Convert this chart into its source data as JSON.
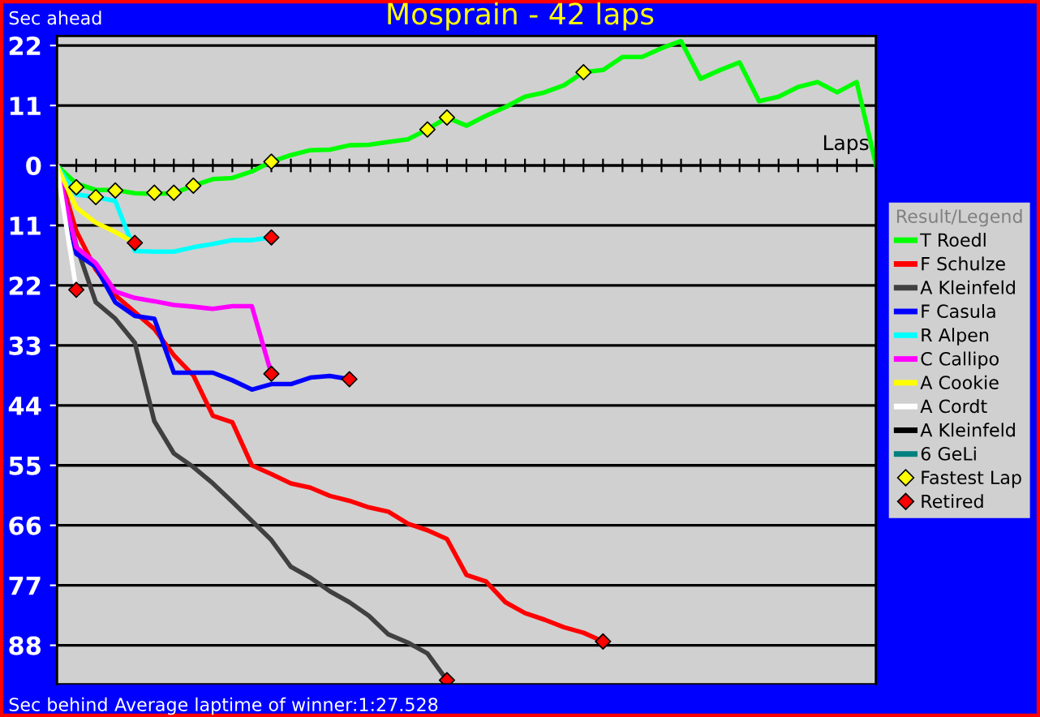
{
  "chart_data": {
    "type": "line",
    "title": "Mosprain - 42 laps",
    "xlabel": "Laps",
    "legend_title": "Result/Legend",
    "annotations": [
      "Sec ahead",
      "Sec behind",
      "Average laptime of winner:1:27.528"
    ],
    "categories": [
      null,
      null,
      null,
      null,
      null,
      null,
      null,
      null,
      null,
      null,
      null,
      null,
      null,
      null,
      null,
      null,
      null,
      null,
      null,
      null,
      null,
      null,
      null,
      null,
      null,
      null,
      null,
      null,
      null,
      null,
      null,
      null,
      null,
      null,
      null,
      null,
      null,
      null,
      null,
      null,
      null,
      null,
      null
    ],
    "ylim": [
      -95.2,
      23.8
    ],
    "yticks": [
      22,
      11,
      0,
      {
        "value": -11,
        "label": "11"
      },
      {
        "value": -22,
        "label": "22"
      },
      {
        "value": -33,
        "label": "33"
      },
      {
        "value": -44,
        "label": "44"
      },
      {
        "value": -55,
        "label": "55"
      },
      {
        "value": -66,
        "label": "66"
      },
      {
        "value": -77,
        "label": "77"
      },
      {
        "value": -88,
        "label": "88"
      }
    ],
    "grid": "y",
    "legend": "right",
    "line_style": "solid",
    "series": [
      {
        "name": "T Roedl",
        "color": "#00ff00",
        "values": [
          0,
          -3.3,
          -4.5,
          -4.5,
          -5.1,
          -5.2,
          -5.1,
          -3.7,
          -2.5,
          -2.3,
          -1.1,
          0.7,
          1.9,
          2.8,
          2.9,
          3.7,
          3.8,
          4.3,
          4.8,
          6.6,
          8.8,
          7.3,
          9.1,
          10.7,
          12.6,
          13.4,
          14.7,
          17.1,
          17.5,
          19.9,
          19.9,
          21.5,
          22.8,
          15.9,
          17.5,
          18.9,
          11.8,
          12.6,
          14.4,
          15.3,
          13.4,
          15.3,
          0
        ]
      },
      {
        "name": "F Schulze",
        "color": "#ff0000",
        "values": [
          0,
          -12,
          -19.1,
          -23.8,
          -26.9,
          -30.0,
          -34.8,
          -38.5,
          -45.9,
          -47.1,
          -55.0,
          -56.6,
          -58.3,
          -59.1,
          -60.6,
          -61.5,
          -62.7,
          -63.5,
          -65.7,
          -66.9,
          -68.5,
          -75.1,
          -76.3,
          -80.1,
          -82.1,
          -83.3,
          -84.7,
          -85.7,
          -87.3,
          null,
          null,
          null,
          null,
          null,
          null,
          null,
          null,
          null,
          null,
          null,
          null,
          null,
          null
        ]
      },
      {
        "name": "A Kleinfeld",
        "color": "#404040",
        "values": [
          0,
          -14.7,
          -25.1,
          -28.1,
          -32.5,
          -46.9,
          -52.8,
          -55.3,
          -58.3,
          -61.7,
          -65.2,
          -68.7,
          -73.6,
          -75.6,
          -78.1,
          -80.1,
          -82.6,
          -86.0,
          -87.5,
          -89.5,
          -94.4,
          null,
          null,
          null,
          null,
          null,
          null,
          null,
          null,
          null,
          null,
          null,
          null,
          null,
          null,
          null,
          null,
          null,
          null,
          null,
          null,
          null,
          null
        ]
      },
      {
        "name": "F Casula",
        "color": "#0000ff",
        "values": [
          0,
          -16.2,
          -18.6,
          -25.1,
          -27.6,
          -28.1,
          -38.0,
          -38.0,
          -38.0,
          -39.4,
          -41.1,
          -40.1,
          -40.1,
          -38.9,
          -38.6,
          -39.2,
          null,
          null,
          null,
          null,
          null,
          null,
          null,
          null,
          null,
          null,
          null,
          null,
          null,
          null,
          null,
          null,
          null,
          null,
          null,
          null,
          null,
          null,
          null,
          null,
          null,
          null,
          null
        ]
      },
      {
        "name": "R Alpen",
        "color": "#00ffff",
        "values": [
          0,
          -5.3,
          -5.8,
          -6.5,
          -15.7,
          -15.8,
          -15.8,
          -15.0,
          -14.4,
          -13.7,
          -13.7,
          -13.2,
          null,
          null,
          null,
          null,
          null,
          null,
          null,
          null,
          null,
          null,
          null,
          null,
          null,
          null,
          null,
          null,
          null,
          null,
          null,
          null,
          null,
          null,
          null,
          null,
          null,
          null,
          null,
          null,
          null,
          null,
          null
        ]
      },
      {
        "name": "C Callipo",
        "color": "#ff00ff",
        "values": [
          0,
          -15,
          -17.9,
          -23.1,
          -24.3,
          -24.9,
          -25.6,
          -25.9,
          -26.3,
          -25.8,
          -25.8,
          -38.2,
          null,
          null,
          null,
          null,
          null,
          null,
          null,
          null,
          null,
          null,
          null,
          null,
          null,
          null,
          null,
          null,
          null,
          null,
          null,
          null,
          null,
          null,
          null,
          null,
          null,
          null,
          null,
          null,
          null,
          null,
          null
        ]
      },
      {
        "name": "A Cookie",
        "color": "#ffff00",
        "values": [
          0,
          -7.7,
          -10.5,
          -12.2,
          -14.2,
          null,
          null,
          null,
          null,
          null,
          null,
          null,
          null,
          null,
          null,
          null,
          null,
          null,
          null,
          null,
          null,
          null,
          null,
          null,
          null,
          null,
          null,
          null,
          null,
          null,
          null,
          null,
          null,
          null,
          null,
          null,
          null,
          null,
          null,
          null,
          null,
          null,
          null
        ]
      },
      {
        "name": "A Cordt",
        "color": "#ffffff",
        "values": [
          0,
          -22.8,
          null,
          null,
          null,
          null,
          null,
          null,
          null,
          null,
          null,
          null,
          null,
          null,
          null,
          null,
          null,
          null,
          null,
          null,
          null,
          null,
          null,
          null,
          null,
          null,
          null,
          null,
          null,
          null,
          null,
          null,
          null,
          null,
          null,
          null,
          null,
          null,
          null,
          null,
          null,
          null,
          null
        ]
      },
      {
        "name": "A Kleinfeld",
        "color": "#000000",
        "values": [
          null,
          null,
          null,
          null,
          null,
          null,
          null,
          null,
          null,
          null,
          null,
          null,
          null,
          null,
          null,
          null,
          null,
          null,
          null,
          null,
          null,
          null,
          null,
          null,
          null,
          null,
          null,
          null,
          null,
          null,
          null,
          null,
          null,
          null,
          null,
          null,
          null,
          null,
          null,
          null,
          null,
          null,
          null
        ]
      },
      {
        "name": "6 GeLi",
        "color": "#008080",
        "values": [
          null,
          null,
          null,
          null,
          null,
          null,
          null,
          null,
          null,
          null,
          null,
          null,
          null,
          null,
          null,
          null,
          null,
          null,
          null,
          null,
          null,
          null,
          null,
          null,
          null,
          null,
          null,
          null,
          null,
          null,
          null,
          null,
          null,
          null,
          null,
          null,
          null,
          null,
          null,
          null,
          null,
          null,
          null
        ]
      },
      {
        "name": "Fastest Lap",
        "type": "scatter",
        "marker": "diamond",
        "color": "#ffff00",
        "values": [
          null,
          -4.0,
          -5.8,
          -4.6,
          null,
          -5.0,
          -5.0,
          -3.7,
          null,
          null,
          null,
          0.7,
          null,
          null,
          null,
          null,
          null,
          null,
          null,
          6.6,
          8.8,
          null,
          null,
          null,
          null,
          null,
          null,
          17.1,
          null,
          null,
          null,
          null,
          null,
          null,
          null,
          null,
          null,
          null,
          null,
          null,
          null,
          null,
          null
        ]
      },
      {
        "name": "Retired",
        "type": "scatter",
        "marker": "diamond",
        "color": "#ff0000",
        "values": [
          null,
          -22.8,
          null,
          null,
          -14.2,
          null,
          null,
          null,
          null,
          null,
          null,
          -13.2,
          null,
          null,
          null,
          -39.2,
          null,
          null,
          null,
          null,
          -94.4,
          null,
          null,
          null,
          null,
          null,
          null,
          null,
          -87.3,
          null,
          null,
          null,
          null,
          null,
          null,
          null,
          null,
          null,
          null,
          null,
          null,
          null,
          null
        ]
      },
      {
        "type": "scatter",
        "marker": "diamond",
        "color": "#ff0000",
        "values": [
          null,
          null,
          null,
          null,
          null,
          null,
          null,
          null,
          null,
          null,
          null,
          -38.2,
          null,
          null,
          null,
          null,
          null,
          null,
          null,
          null,
          null,
          null,
          null,
          null,
          null,
          null,
          null,
          null,
          null,
          null,
          null,
          null,
          null,
          null,
          null,
          null,
          null,
          null,
          null,
          null,
          null,
          null,
          null
        ]
      }
    ]
  }
}
